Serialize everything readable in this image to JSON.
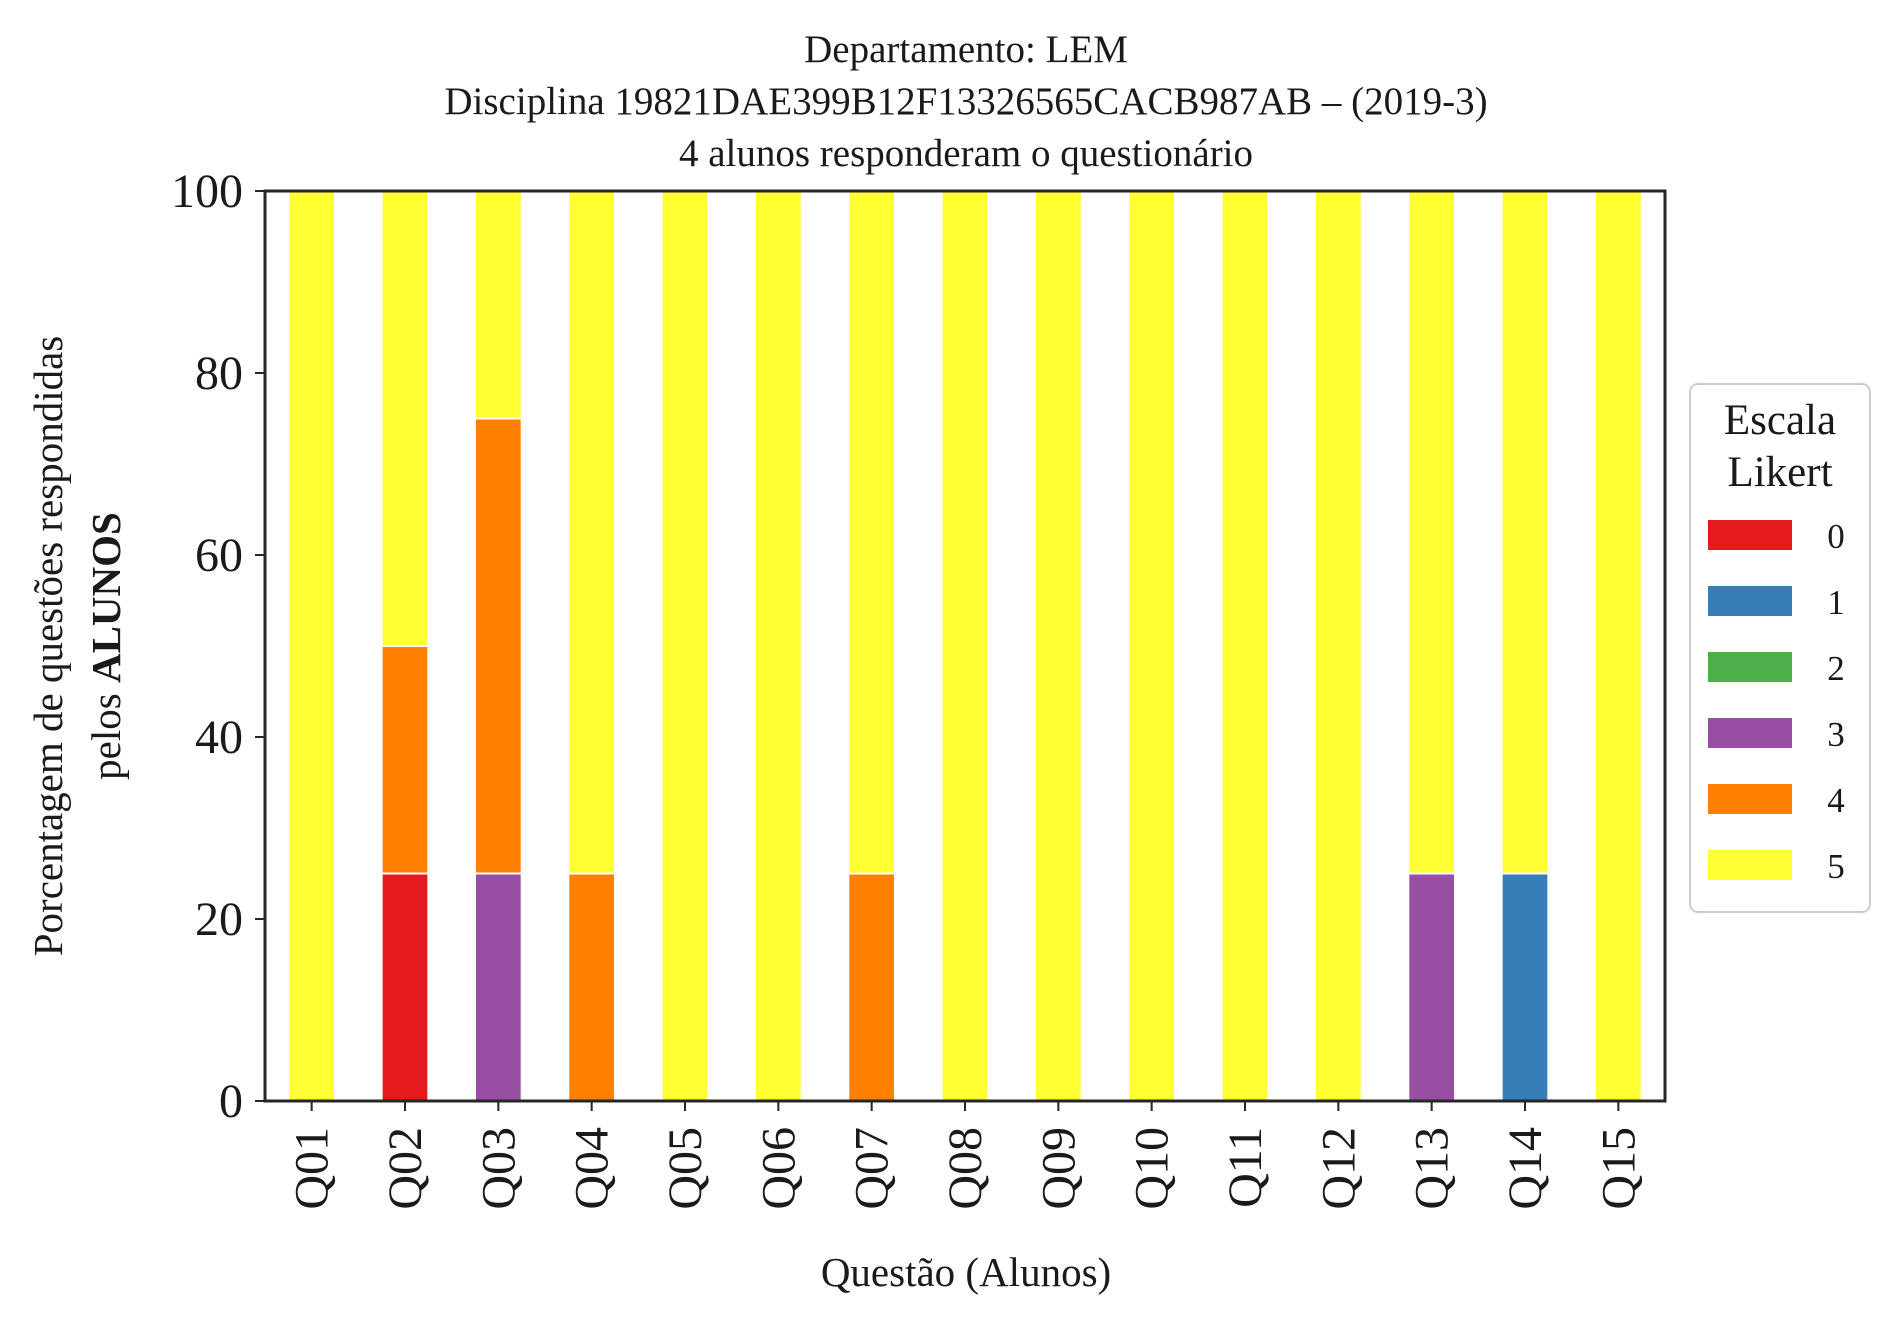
{
  "chart_data": {
    "type": "bar",
    "stacked": true,
    "title_lines": [
      "Departamento: LEM",
      "Disciplina 19821DAE399B12F13326565CACB987AB – (2019-3)",
      "4 alunos responderam o questionário"
    ],
    "xlabel": "Questão (Alunos)",
    "ylabel_line1": "Porcentagem de questões respondidas",
    "ylabel_line2_prefix": "pelos ",
    "ylabel_line2_bold": "ALUNOS",
    "ylim": [
      0,
      100
    ],
    "yticks": [
      0,
      20,
      40,
      60,
      80,
      100
    ],
    "yticks_labels": [
      "0",
      "20",
      "40",
      "60",
      "80",
      "100"
    ],
    "grid": false,
    "legend": {
      "title_line1": "Escala",
      "title_line2": "Likert",
      "placement": "right-center outside"
    },
    "categories": [
      "Q01",
      "Q02",
      "Q03",
      "Q04",
      "Q05",
      "Q06",
      "Q07",
      "Q08",
      "Q09",
      "Q10",
      "Q11",
      "Q12",
      "Q13",
      "Q14",
      "Q15"
    ],
    "series": [
      {
        "name": "0",
        "color": "#e41a1c",
        "values": [
          0,
          25,
          0,
          0,
          0,
          0,
          0,
          0,
          0,
          0,
          0,
          0,
          0,
          0,
          0
        ]
      },
      {
        "name": "1",
        "color": "#377eb8",
        "values": [
          0,
          0,
          0,
          0,
          0,
          0,
          0,
          0,
          0,
          0,
          0,
          0,
          0,
          25,
          0
        ]
      },
      {
        "name": "2",
        "color": "#4daf4a",
        "values": [
          0,
          0,
          0,
          0,
          0,
          0,
          0,
          0,
          0,
          0,
          0,
          0,
          0,
          0,
          0
        ]
      },
      {
        "name": "3",
        "color": "#984ea3",
        "values": [
          0,
          0,
          25,
          0,
          0,
          0,
          0,
          0,
          0,
          0,
          0,
          0,
          25,
          0,
          0
        ]
      },
      {
        "name": "4",
        "color": "#ff7f00",
        "values": [
          0,
          25,
          50,
          25,
          0,
          0,
          25,
          0,
          0,
          0,
          0,
          0,
          0,
          0,
          0
        ]
      },
      {
        "name": "5",
        "color": "#ffff33",
        "values": [
          100,
          50,
          25,
          75,
          100,
          100,
          75,
          100,
          100,
          100,
          100,
          100,
          75,
          75,
          100
        ]
      }
    ]
  }
}
